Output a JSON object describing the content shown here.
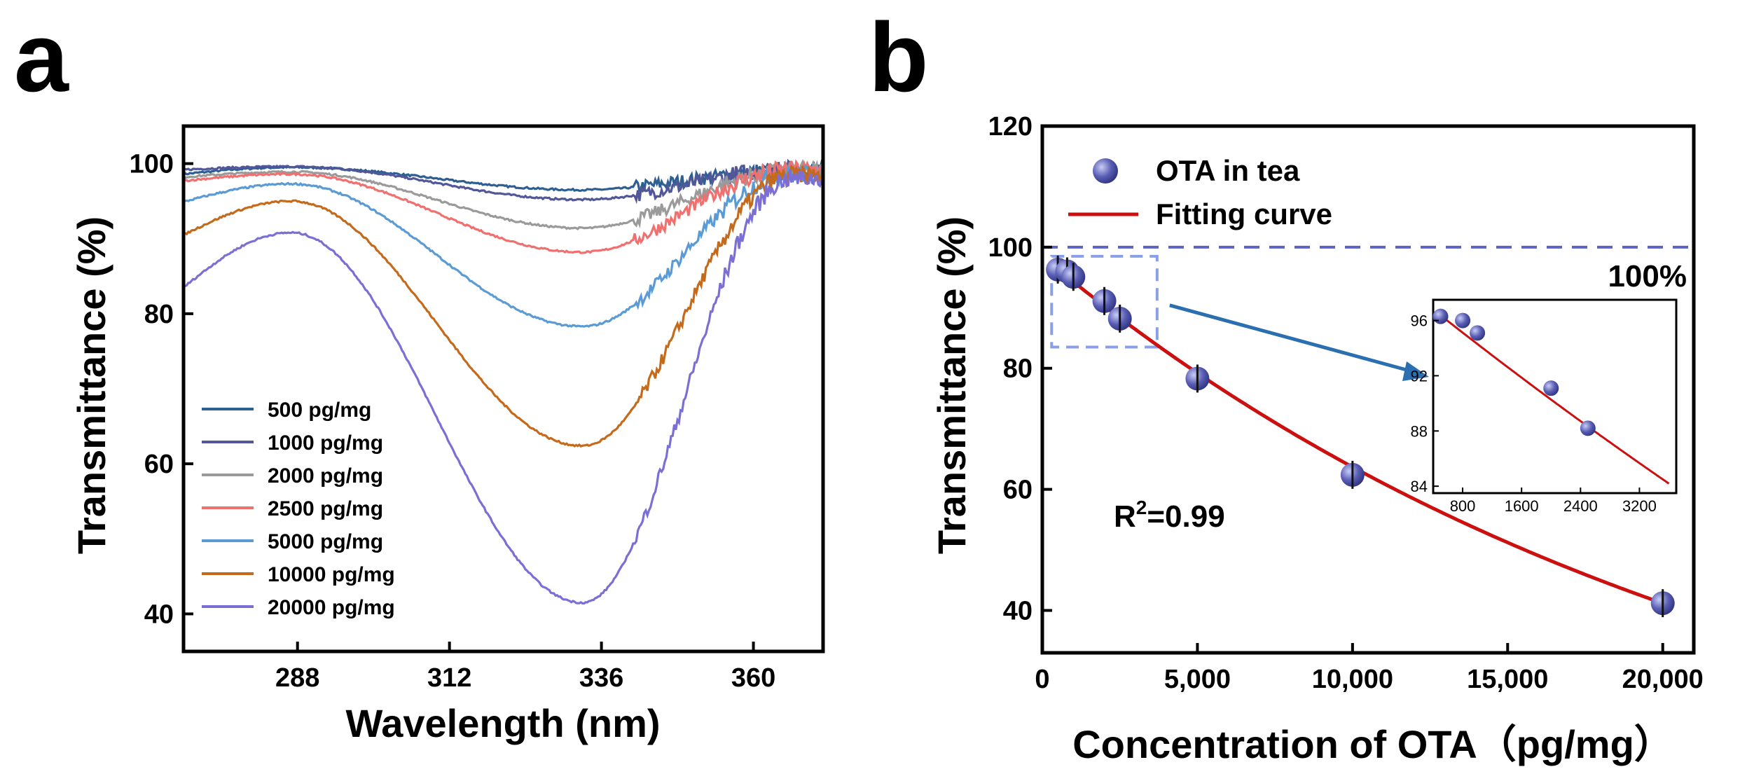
{
  "panels": {
    "a_label": "a",
    "b_label": "b"
  },
  "chart_data": [
    {
      "type": "line",
      "panel": "a",
      "title": "",
      "xlabel": "Wavelength (nm)",
      "ylabel": "Transmittance (%)",
      "xlim": [
        270,
        371
      ],
      "ylim": [
        35,
        105
      ],
      "xticks": [
        "288",
        "312",
        "336",
        "360"
      ],
      "yticks": [
        "40",
        "60",
        "80",
        "100"
      ],
      "grid": false,
      "legend_position": "bottom-left",
      "series": [
        {
          "name": "500 pg/mg",
          "color": "#2e5f92",
          "base_start": 98.6,
          "peak_value": 99.5,
          "min_value": 96.5,
          "end_value": 99.0
        },
        {
          "name": "1000 pg/mg",
          "color": "#52579a",
          "base_start": 99.2,
          "peak_value": 99.6,
          "min_value": 95.2,
          "end_value": 99.2
        },
        {
          "name": "2000 pg/mg",
          "color": "#9a9a9a",
          "base_start": 98.2,
          "peak_value": 98.9,
          "min_value": 91.4,
          "end_value": 99.0
        },
        {
          "name": "2500 pg/mg",
          "color": "#f07070",
          "base_start": 97.7,
          "peak_value": 98.6,
          "min_value": 88.2,
          "end_value": 99.2
        },
        {
          "name": "5000 pg/mg",
          "color": "#5b9bd5",
          "base_start": 94.9,
          "peak_value": 97.3,
          "min_value": 78.3,
          "end_value": 98.6
        },
        {
          "name": "10000 pg/mg",
          "color": "#c56a1b",
          "base_start": 90.5,
          "peak_value": 95.0,
          "min_value": 62.4,
          "end_value": 98.5
        },
        {
          "name": "20000 pg/mg",
          "color": "#7b6fd6",
          "base_start": 83.5,
          "peak_value": 90.8,
          "min_value": 41.5,
          "end_value": 98.0
        }
      ]
    },
    {
      "type": "scatter",
      "panel": "b",
      "title": "",
      "xlabel": "Concentration of OTA（pg/mg）",
      "ylabel": "Transmittance (%)",
      "xlim": [
        0,
        21000
      ],
      "ylim": [
        33,
        120
      ],
      "xticks": [
        "0",
        "5,000",
        "10,000",
        "15,000",
        "20,000"
      ],
      "yticks": [
        "40",
        "60",
        "80",
        "100",
        "120"
      ],
      "legend_position": "top-left",
      "legend": {
        "points": "OTA in tea",
        "fit": "Fitting curve"
      },
      "point_color": "#5b5fb5",
      "fit_color": "#cc1010",
      "reference_line": {
        "y": 100,
        "label": "100%"
      },
      "annotation": {
        "text_main": "R",
        "text_sup": "2",
        "text_rest": "=0.99"
      },
      "points": [
        {
          "x": 500,
          "y": 96.3
        },
        {
          "x": 800,
          "y": 96.0
        },
        {
          "x": 1000,
          "y": 95.1
        },
        {
          "x": 2000,
          "y": 91.1
        },
        {
          "x": 2500,
          "y": 88.2
        },
        {
          "x": 5000,
          "y": 78.3
        },
        {
          "x": 10000,
          "y": 62.4
        },
        {
          "x": 20000,
          "y": 41.2
        }
      ],
      "fit": {
        "form": "exponential",
        "a": 98.5,
        "b": 4.36e-05
      },
      "zoom_region": {
        "x": [
          300,
          3700
        ],
        "y": [
          83.5,
          98.5
        ]
      },
      "inset": {
        "xlim": [
          400,
          3700
        ],
        "ylim": [
          83.5,
          97.5
        ],
        "xticks": [
          800,
          1600,
          2400,
          3200
        ],
        "yticks": [
          84,
          88,
          92,
          96
        ],
        "xtick_labels": [
          "800",
          "1600",
          "2400",
          "3200"
        ],
        "ytick_labels": [
          "84",
          "88",
          "92",
          "96"
        ]
      }
    }
  ]
}
